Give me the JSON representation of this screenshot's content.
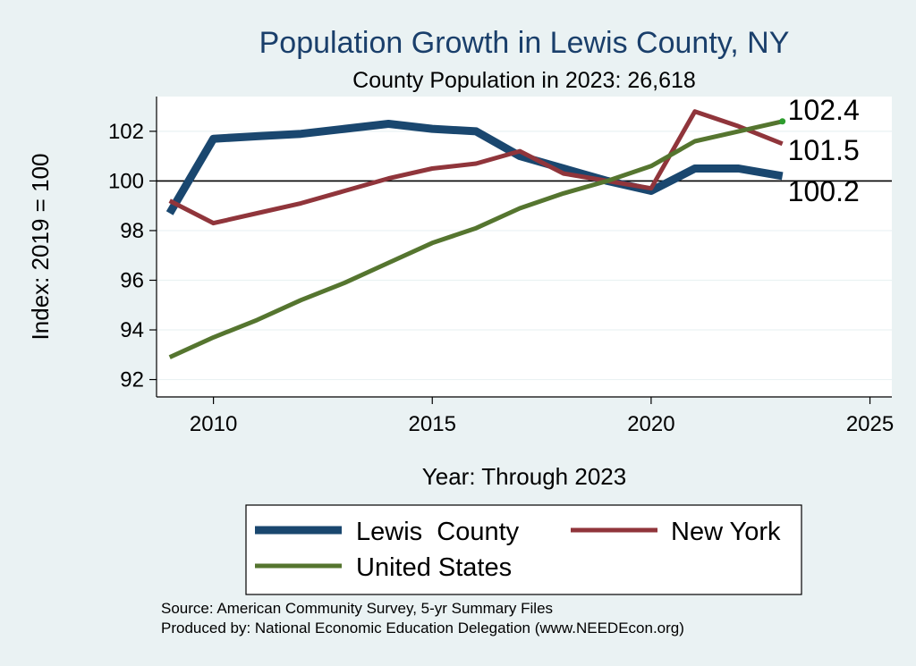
{
  "chart_data": {
    "type": "line",
    "title": "Population Growth in Lewis County, NY",
    "subtitle": "County Population in 2023: 26,618",
    "xlabel": "Year: Through 2023",
    "ylabel": "Index: 2019 = 100",
    "xlim": [
      2008.7,
      2025.5
    ],
    "ylim": [
      91.3,
      103.4
    ],
    "xticks": [
      2010,
      2015,
      2020,
      2025
    ],
    "yticks": [
      92,
      94,
      96,
      98,
      100,
      102
    ],
    "reference_line": 100,
    "series": [
      {
        "name": "Lewis  County",
        "color": "#1a476f",
        "x": [
          2009,
          2010,
          2011,
          2012,
          2013,
          2014,
          2015,
          2016,
          2017,
          2018,
          2019,
          2020,
          2021,
          2022,
          2023
        ],
        "values": [
          98.7,
          101.7,
          101.8,
          101.9,
          102.1,
          102.3,
          102.1,
          102.0,
          101.0,
          100.5,
          100.0,
          99.6,
          100.5,
          100.5,
          100.2
        ]
      },
      {
        "name": "New York",
        "color": "#90353b",
        "x": [
          2009,
          2010,
          2011,
          2012,
          2013,
          2014,
          2015,
          2016,
          2017,
          2018,
          2019,
          2020,
          2021,
          2022,
          2023
        ],
        "values": [
          99.2,
          98.3,
          98.7,
          99.1,
          99.6,
          100.1,
          100.5,
          100.7,
          101.2,
          100.3,
          100.0,
          99.7,
          102.8,
          102.2,
          101.5
        ]
      },
      {
        "name": "United States",
        "color": "#55752f",
        "x": [
          2009,
          2010,
          2011,
          2012,
          2013,
          2014,
          2015,
          2016,
          2017,
          2018,
          2019,
          2020,
          2021,
          2022,
          2023
        ],
        "values": [
          92.9,
          93.7,
          94.4,
          95.2,
          95.9,
          96.7,
          97.5,
          98.1,
          98.9,
          99.5,
          100.0,
          100.6,
          101.6,
          102.0,
          102.4
        ]
      }
    ],
    "end_labels": [
      {
        "series": "United States",
        "text": "102.4"
      },
      {
        "series": "New York",
        "text": "101.5"
      },
      {
        "series": "Lewis  County",
        "text": "100.2"
      }
    ]
  },
  "legend": {
    "items": [
      {
        "label": "Lewis  County"
      },
      {
        "label": "New York"
      },
      {
        "label": "United States"
      }
    ]
  },
  "footer": {
    "source": "Source: American Community Survey, 5-yr Summary Files",
    "produced_by": "Produced by: National Economic Education Delegation (www.NEEDEcon.org)"
  },
  "colors": {
    "background": "#eaf2f3",
    "plot_background": "#ffffff",
    "gridline": "#eaf2f3",
    "title": "#1a3f6b"
  }
}
